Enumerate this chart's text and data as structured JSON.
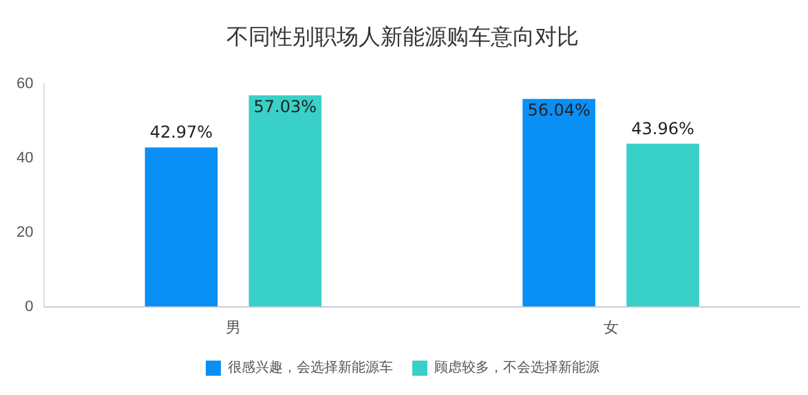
{
  "chart_data": {
    "type": "bar",
    "title": "不同性别职场人新能源购车意向对比",
    "categories": [
      "男",
      "女"
    ],
    "series": [
      {
        "name": "很感兴趣，会选择新能源车",
        "color": "#0a8ff5",
        "values": [
          42.97,
          56.04
        ],
        "value_labels": [
          "42.97%",
          "56.04%"
        ]
      },
      {
        "name": "顾虑较多，不会选择新能源",
        "color": "#38d0c8",
        "values": [
          57.03,
          43.96
        ],
        "value_labels": [
          "57.03%",
          "43.96%"
        ]
      }
    ],
    "ylim": [
      0,
      60
    ],
    "yticks": [
      0,
      20,
      40,
      60
    ],
    "grid": false,
    "legend": "bottom"
  }
}
